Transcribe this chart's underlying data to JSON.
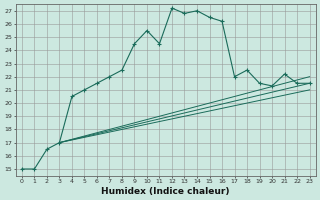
{
  "title": "",
  "xlabel": "Humidex (Indice chaleur)",
  "bg_color": "#cce8e0",
  "grid_color": "#999999",
  "line_color": "#1a6b5a",
  "xlim": [
    -0.5,
    23.5
  ],
  "ylim": [
    14.5,
    27.5
  ],
  "yticks": [
    15,
    16,
    17,
    18,
    19,
    20,
    21,
    22,
    23,
    24,
    25,
    26,
    27
  ],
  "xticks": [
    0,
    1,
    2,
    3,
    4,
    5,
    6,
    7,
    8,
    9,
    10,
    11,
    12,
    13,
    14,
    15,
    16,
    17,
    18,
    19,
    20,
    21,
    22,
    23
  ],
  "series": [
    {
      "x": [
        0,
        1,
        2,
        3,
        4,
        5,
        6,
        7,
        8,
        9,
        10,
        11,
        12,
        13,
        14,
        15,
        16,
        17,
        18,
        19,
        20,
        21,
        22,
        23
      ],
      "y": [
        15,
        15,
        16.5,
        17,
        20.5,
        21.0,
        21.5,
        22.0,
        22.5,
        24.5,
        25.5,
        24.5,
        27.2,
        26.8,
        27.0,
        26.5,
        26.2,
        22.0,
        22.5,
        21.5,
        21.3,
        22.2,
        21.5,
        21.5
      ],
      "marker": true
    },
    {
      "x": [
        3,
        23
      ],
      "y": [
        17,
        22.0
      ],
      "marker": false
    },
    {
      "x": [
        3,
        23
      ],
      "y": [
        17,
        21.5
      ],
      "marker": false
    },
    {
      "x": [
        3,
        23
      ],
      "y": [
        17,
        21.0
      ],
      "marker": false
    }
  ]
}
